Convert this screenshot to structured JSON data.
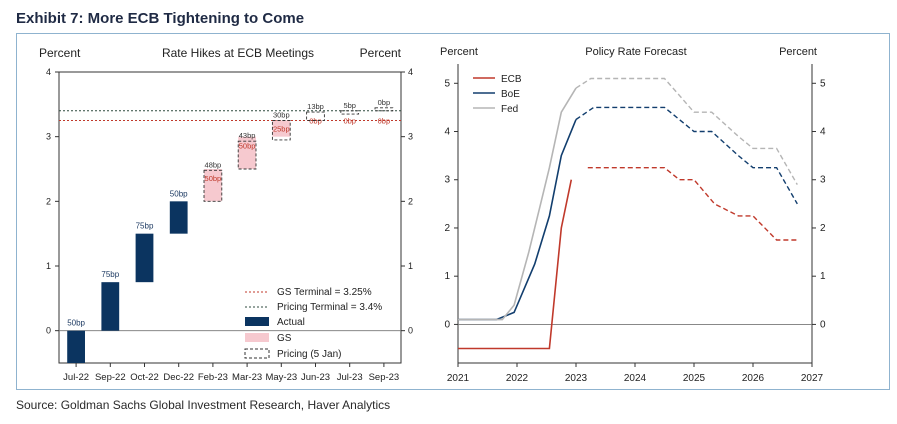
{
  "header": {
    "title": "Exhibit 7: More ECB Tightening to Come"
  },
  "footer": {
    "source": "Source: Goldman Sachs Global Investment Research, Haver Analytics"
  },
  "chart_data": [
    {
      "type": "bar",
      "title": "Rate Hikes at ECB Meetings",
      "ylabel_left": "Percent",
      "ylabel_right": "Percent",
      "ylim": [
        -0.5,
        4
      ],
      "yticks": [
        0,
        1,
        2,
        3,
        4
      ],
      "categories": [
        "Jul-22",
        "Sep-22",
        "Oct-22",
        "Dec-22",
        "Feb-23",
        "Mar-23",
        "May-23",
        "Jun-23",
        "Jul-23",
        "Sep-23"
      ],
      "series": [
        {
          "name": "Actual",
          "color": "#0b3460",
          "base": [
            -0.5,
            0.0,
            0.75,
            1.5,
            null,
            null,
            null,
            null,
            null,
            null
          ],
          "values": [
            0.5,
            0.75,
            0.75,
            0.5,
            null,
            null,
            null,
            null,
            null,
            null
          ],
          "labels": [
            "50bp",
            "75bp",
            "75bp",
            "50bp",
            "",
            "",
            "",
            "",
            "",
            ""
          ]
        },
        {
          "name": "GS",
          "color": "#f6c9cf",
          "base": [
            null,
            null,
            null,
            null,
            2.0,
            2.5,
            3.0,
            3.25,
            3.25,
            3.25
          ],
          "values": [
            null,
            null,
            null,
            null,
            0.5,
            0.5,
            0.25,
            0.0,
            0.0,
            0.0
          ],
          "labels": [
            "",
            "",
            "",
            "",
            "50bp",
            "50bp",
            "25bp",
            "0bp",
            "0bp",
            "0bp"
          ]
        },
        {
          "name": "Pricing (5 Jan)",
          "color": "#333333",
          "base": [
            null,
            null,
            null,
            null,
            2.0,
            2.5,
            2.95,
            3.25,
            3.35,
            3.4
          ],
          "values": [
            null,
            null,
            null,
            null,
            0.48,
            0.43,
            0.3,
            0.13,
            0.05,
            0.0
          ],
          "labels": [
            "",
            "",
            "",
            "",
            "48bp",
            "43bp",
            "30bp",
            "13bp",
            "5bp",
            "0bp"
          ]
        }
      ],
      "reference_lines": [
        {
          "name": "GS Terminal = 3.25%",
          "value": 3.25,
          "color": "#c0392b"
        },
        {
          "name": "Pricing Terminal = 3.4%",
          "value": 3.4,
          "color": "#2e4a3e"
        }
      ],
      "legend_placement": "bottom-right"
    },
    {
      "type": "line",
      "title": "Policy Rate Forecast",
      "ylabel_left": "Percent",
      "ylabel_right": "Percent",
      "xlim": [
        2021,
        2027
      ],
      "ylim": [
        -0.8,
        5.4
      ],
      "xticks": [
        2021,
        2022,
        2023,
        2024,
        2025,
        2026,
        2027
      ],
      "yticks": [
        0,
        1,
        2,
        3,
        4,
        5
      ],
      "legend_placement": "top-left",
      "series": [
        {
          "name": "ECB",
          "color": "#c0392b",
          "x": [
            2021,
            2022.25,
            2022.55,
            2022.75,
            2022.92,
            2023.2,
            2023.5,
            2024.5,
            2024.75,
            2025.0,
            2025.35,
            2025.75,
            2026.0,
            2026.4,
            2026.75
          ],
          "y": [
            -0.5,
            -0.5,
            -0.5,
            2.0,
            3.0,
            3.25,
            3.25,
            3.25,
            3.0,
            3.0,
            2.5,
            2.25,
            2.25,
            1.75,
            1.75
          ],
          "dashed_from": 2023.0
        },
        {
          "name": "BoE",
          "color": "#123e6e",
          "x": [
            2021,
            2021.4,
            2021.65,
            2021.95,
            2022.3,
            2022.55,
            2022.75,
            2023.0,
            2023.3,
            2023.5,
            2024.5,
            2024.75,
            2025.0,
            2025.3,
            2025.75,
            2026.0,
            2026.4,
            2026.75
          ],
          "y": [
            0.1,
            0.1,
            0.1,
            0.25,
            1.25,
            2.25,
            3.5,
            4.25,
            4.5,
            4.5,
            4.5,
            4.25,
            4.0,
            4.0,
            3.5,
            3.25,
            3.25,
            2.5
          ],
          "dashed_from": 2023.0
        },
        {
          "name": "Fed",
          "color": "#b5b5b5",
          "x": [
            2021,
            2021.55,
            2021.75,
            2021.95,
            2022.2,
            2022.4,
            2022.55,
            2022.75,
            2023.0,
            2023.25,
            2023.5,
            2024.5,
            2024.75,
            2025.0,
            2025.3,
            2025.75,
            2026.0,
            2026.4,
            2026.75
          ],
          "y": [
            0.1,
            0.1,
            0.1,
            0.4,
            1.5,
            2.5,
            3.25,
            4.4,
            4.9,
            5.1,
            5.1,
            5.1,
            4.75,
            4.4,
            4.4,
            3.9,
            3.65,
            3.65,
            2.9
          ],
          "dashed_from": 2023.0
        }
      ]
    }
  ]
}
